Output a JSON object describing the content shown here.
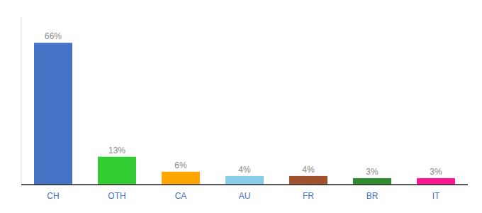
{
  "chart_data": {
    "type": "bar",
    "categories": [
      "CH",
      "OTH",
      "CA",
      "AU",
      "FR",
      "BR",
      "IT"
    ],
    "values": [
      66,
      13,
      6,
      4,
      4,
      3,
      3
    ],
    "value_labels": [
      "66%",
      "13%",
      "6%",
      "4%",
      "4%",
      "3%",
      "3%"
    ],
    "colors": [
      "#4472C4",
      "#33CC33",
      "#FFA500",
      "#87CEEB",
      "#A0522D",
      "#2D8A2D",
      "#FF1493"
    ],
    "ylim": [
      0,
      78
    ],
    "data_labels": true,
    "tick_labels": "x",
    "grid": false
  }
}
